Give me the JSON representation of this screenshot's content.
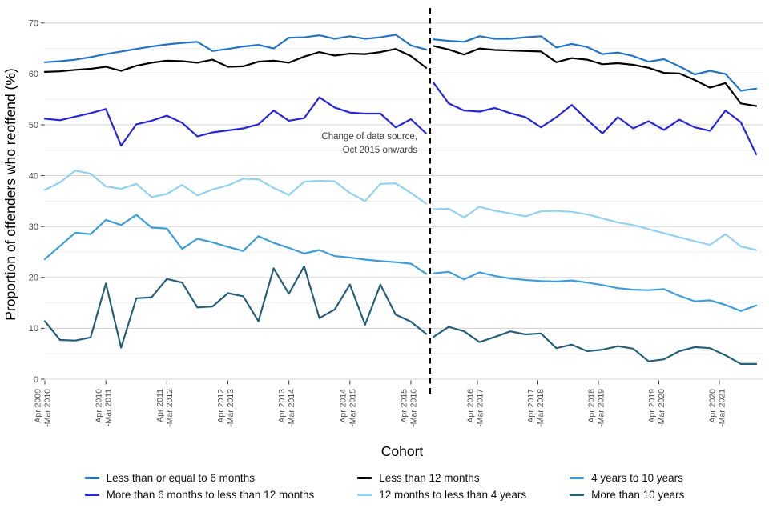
{
  "y_axis": {
    "title": "Proportion of offenders who reoffend (%)",
    "ticks": [
      0,
      10,
      20,
      30,
      40,
      50,
      60,
      70
    ]
  },
  "x_axis": {
    "title": "Cohort",
    "tick_labels": [
      {
        "line1": "Apr 2009",
        "line2": "-Mar 2010"
      },
      {
        "line1": "Apr 2010",
        "line2": "-Mar 2011"
      },
      {
        "line1": "Apr 2011",
        "line2": "-Mar 2012"
      },
      {
        "line1": "Apr 2012",
        "line2": "-Mar 2013"
      },
      {
        "line1": "Apr 2013",
        "line2": "-Mar 2014"
      },
      {
        "line1": "Apr 2014",
        "line2": "-Mar 2015"
      },
      {
        "line1": "Apr 2015",
        "line2": "-Mar 2016"
      },
      {
        "line1": "Apr 2016",
        "line2": "-Mar 2017"
      },
      {
        "line1": "Apr 2017",
        "line2": "-Mar 2018"
      },
      {
        "line1": "Apr 2018",
        "line2": "-Mar 2019"
      },
      {
        "line1": "Apr 2019",
        "line2": "-Mar 2020"
      },
      {
        "line1": "Apr 2020",
        "line2": "-Mar 2021"
      }
    ]
  },
  "annotation": {
    "line1": "Change of data source,",
    "line2": "Oct 2015 onwards"
  },
  "legend": {
    "items": [
      {
        "label": "Less than or equal to 6 months",
        "color": "#2374c4"
      },
      {
        "label": "More than 6 months to less than 12 months",
        "color": "#2626d9"
      },
      {
        "label": "Less than 12 months",
        "color": "#000000"
      },
      {
        "label": "12 months to less than 4 years",
        "color": "#92d1f2"
      },
      {
        "label": "4 years to 10 years",
        "color": "#3f9ed8"
      },
      {
        "label": "More than 10 years",
        "color": "#265f78"
      }
    ]
  },
  "chart_data": {
    "type": "line",
    "title": "",
    "xlabel": "Cohort",
    "ylabel": "Proportion of offenders who reoffend (%)",
    "ylim": [
      0,
      70
    ],
    "grid": "major 10s and minor 5s, horizontal",
    "legend_position": "bottom",
    "x_yearly_tick_labels": [
      "Apr 2009-Mar 2010",
      "Apr 2010-Mar 2011",
      "Apr 2011-Mar 2012",
      "Apr 2012-Mar 2013",
      "Apr 2013-Mar 2014",
      "Apr 2014-Mar 2015",
      "Apr 2015-Mar 2016",
      "Apr 2016-Mar 2017",
      "Apr 2017-Mar 2018",
      "Apr 2018-Mar 2019",
      "Apr 2019-Mar 2020",
      "Apr 2020-Mar 2021"
    ],
    "x_resolution": "quarterly cohorts; 26 quarterly points before the data-source break, 22 after",
    "data_source_break": {
      "annotation": [
        "Change of data source,",
        "Oct 2015 onwards"
      ],
      "style": "vertical black dashed line between the Jul-Sep 2015 and Oct-Dec 2015 cohorts"
    },
    "series": [
      {
        "name": "Less than or equal to 6 months",
        "color": "#2374c4",
        "values_before_break": [
          62.3,
          62.5,
          62.8,
          63.3,
          63.9,
          64.4,
          64.9,
          65.4,
          65.8,
          66.1,
          66.3,
          64.5,
          64.9,
          65.4,
          65.7,
          65.0,
          67.1,
          67.2,
          67.6,
          66.9,
          67.4,
          66.9,
          67.2,
          67.7,
          65.6,
          64.8
        ],
        "values_after_break": [
          66.8,
          66.5,
          66.3,
          67.4,
          66.9,
          66.9,
          67.2,
          67.4,
          65.2,
          65.9,
          65.3,
          63.9,
          64.2,
          63.5,
          62.4,
          62.9,
          61.5,
          59.9,
          60.6,
          60.0,
          56.7,
          57.1
        ]
      },
      {
        "name": "More than 6 months to less than 12 months",
        "color": "#2626d9",
        "values_before_break": [
          51.2,
          50.9,
          51.6,
          52.3,
          53.1,
          45.9,
          50.1,
          50.8,
          51.8,
          50.4,
          47.7,
          48.5,
          48.9,
          49.3,
          50.1,
          52.8,
          50.8,
          51.3,
          55.4,
          53.4,
          52.4,
          52.2,
          52.2,
          49.5,
          51.1,
          48.3
        ],
        "values_after_break": [
          58.3,
          54.2,
          52.8,
          52.6,
          53.3,
          52.3,
          51.5,
          49.5,
          51.5,
          53.9,
          51.0,
          48.3,
          51.5,
          49.3,
          50.7,
          49.0,
          51.0,
          49.5,
          48.8,
          52.8,
          50.5,
          44.2
        ]
      },
      {
        "name": "Less than 12 months",
        "color": "#000000",
        "values_before_break": [
          60.4,
          60.5,
          60.8,
          61.0,
          61.4,
          60.6,
          61.6,
          62.2,
          62.6,
          62.5,
          62.2,
          62.8,
          61.4,
          61.5,
          62.4,
          62.6,
          62.2,
          63.4,
          64.3,
          63.6,
          64.0,
          63.9,
          64.3,
          64.9,
          63.5,
          61.2
        ],
        "values_after_break": [
          65.5,
          64.8,
          63.8,
          65.0,
          64.7,
          64.6,
          64.5,
          64.4,
          62.3,
          63.1,
          62.8,
          61.9,
          62.1,
          61.8,
          61.2,
          60.2,
          60.1,
          58.8,
          57.3,
          58.2,
          54.2,
          53.7
        ]
      },
      {
        "name": "12 months to less than 4 years",
        "color": "#92d1f2",
        "values_before_break": [
          37.2,
          38.7,
          41.0,
          40.4,
          37.9,
          37.4,
          38.4,
          35.8,
          36.4,
          38.2,
          36.1,
          37.3,
          38.1,
          39.4,
          39.3,
          37.6,
          36.2,
          38.8,
          39.0,
          38.9,
          36.6,
          35.0,
          38.4,
          38.5,
          36.6,
          34.5
        ],
        "values_after_break": [
          33.4,
          33.5,
          31.8,
          33.9,
          33.1,
          32.6,
          32.0,
          33.0,
          33.1,
          32.9,
          32.4,
          31.6,
          30.8,
          30.3,
          29.5,
          28.7,
          27.9,
          27.1,
          26.4,
          28.5,
          26.1,
          25.4
        ]
      },
      {
        "name": "4 years to 10 years",
        "color": "#3f9ed8",
        "values_before_break": [
          23.6,
          26.2,
          28.8,
          28.5,
          31.3,
          30.3,
          32.3,
          29.8,
          29.6,
          25.6,
          27.6,
          26.9,
          26.0,
          25.2,
          28.1,
          26.8,
          25.8,
          24.7,
          25.4,
          24.2,
          23.9,
          23.5,
          23.2,
          23.0,
          22.7,
          20.7
        ],
        "values_after_break": [
          20.8,
          21.1,
          19.6,
          21.0,
          20.3,
          19.8,
          19.5,
          19.3,
          19.2,
          19.4,
          19.0,
          18.5,
          17.9,
          17.6,
          17.5,
          17.7,
          16.4,
          15.3,
          15.5,
          14.6,
          13.4,
          14.5
        ]
      },
      {
        "name": "More than 10 years",
        "color": "#265f78",
        "values_before_break": [
          11.4,
          7.7,
          7.6,
          8.2,
          18.8,
          6.2,
          15.9,
          16.1,
          19.7,
          19.0,
          14.1,
          14.3,
          16.9,
          16.3,
          11.4,
          21.8,
          16.8,
          22.2,
          12.0,
          13.7,
          18.6,
          10.7,
          18.6,
          12.7,
          11.3,
          8.9
        ],
        "values_after_break": [
          8.3,
          10.3,
          9.4,
          7.3,
          8.3,
          9.4,
          8.8,
          9.0,
          6.1,
          6.8,
          5.5,
          5.8,
          6.5,
          6.0,
          3.5,
          3.9,
          5.5,
          6.3,
          6.1,
          4.7,
          3.0,
          3.0
        ]
      }
    ]
  }
}
